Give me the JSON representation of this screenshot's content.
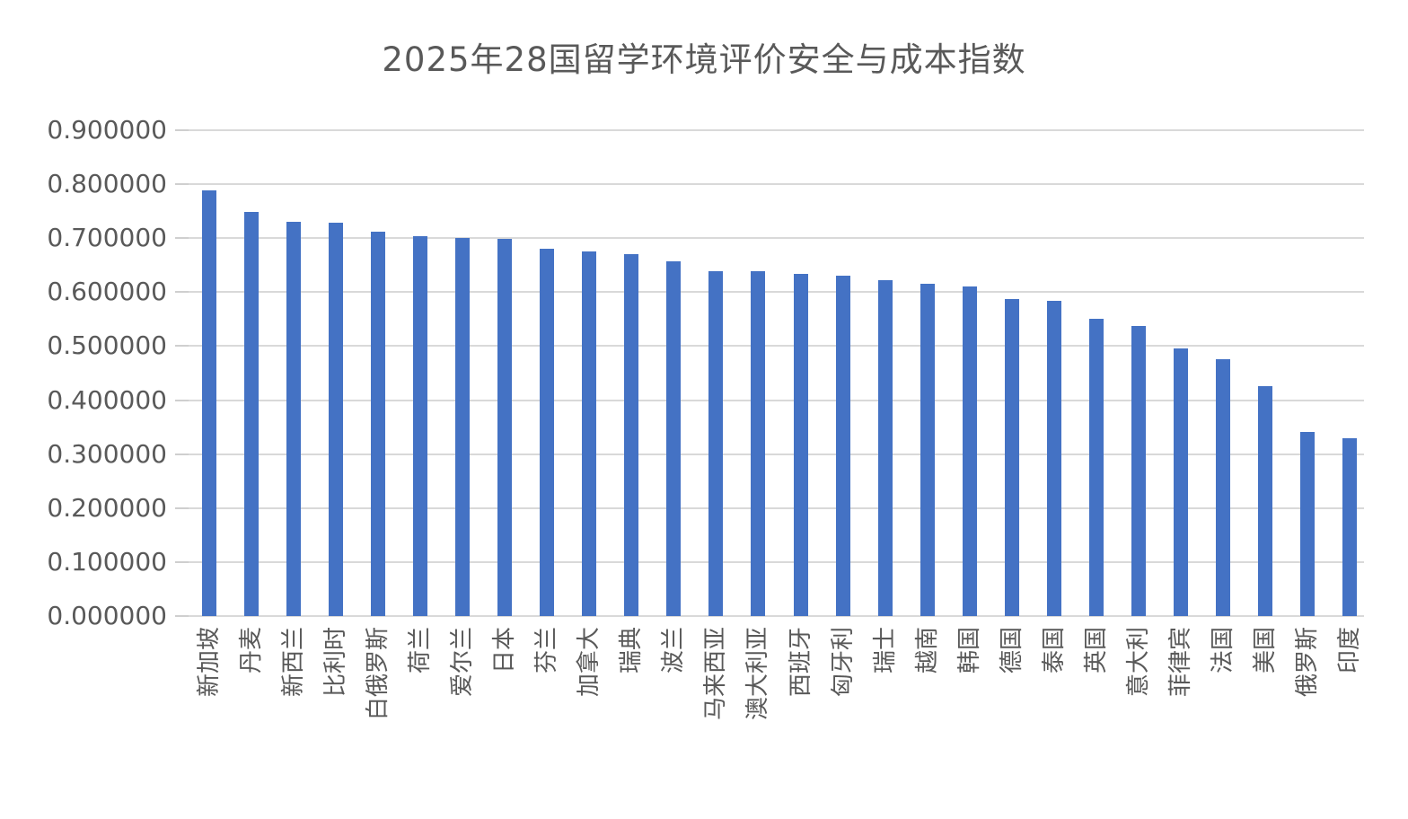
{
  "chart_data": {
    "type": "bar",
    "title": "2025年28国留学环境评价安全与成本指数",
    "categories": [
      "新加坡",
      "丹麦",
      "新西兰",
      "比利时",
      "白俄罗斯",
      "荷兰",
      "爱尔兰",
      "日本",
      "芬兰",
      "加拿大",
      "瑞典",
      "波兰",
      "马来西亚",
      "澳大利亚",
      "西班牙",
      "匈牙利",
      "瑞士",
      "越南",
      "韩国",
      "德国",
      "泰国",
      "英国",
      "意大利",
      "菲律宾",
      "法国",
      "美国",
      "俄罗斯",
      "印度"
    ],
    "values": [
      0.789,
      0.749,
      0.73,
      0.728,
      0.712,
      0.703,
      0.701,
      0.699,
      0.681,
      0.676,
      0.67,
      0.657,
      0.639,
      0.638,
      0.634,
      0.63,
      0.623,
      0.616,
      0.611,
      0.588,
      0.584,
      0.55,
      0.537,
      0.496,
      0.476,
      0.426,
      0.341,
      0.33
    ],
    "xlabel": "",
    "ylabel": "",
    "ylim": [
      0.0,
      0.9
    ],
    "ytick_step": 0.1,
    "ytick_labels": [
      "0.900000",
      "0.800000",
      "0.700000",
      "0.600000",
      "0.500000",
      "0.400000",
      "0.300000",
      "0.200000",
      "0.100000",
      "0.000000"
    ],
    "grid": true,
    "legend": "none",
    "bar_color": "#4472C4",
    "gridline_color": "#D9D9D9",
    "text_color": "#595959",
    "background_color": "#FFFFFF"
  }
}
